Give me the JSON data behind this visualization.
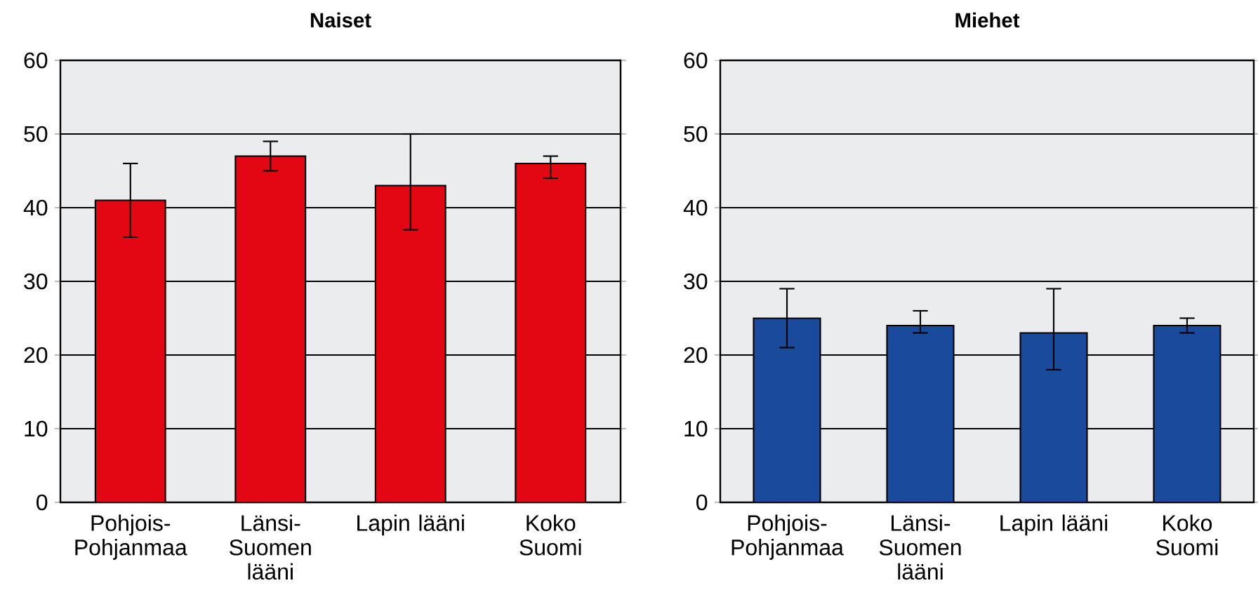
{
  "chart_data": [
    {
      "type": "bar",
      "title": "Naiset",
      "categories": [
        "Pohjois-Pohjanmaa",
        "Länsi-Suomen lääni",
        "Lapin lääni",
        "Koko Suomi"
      ],
      "values": [
        41,
        47,
        43,
        46
      ],
      "color": "#e30613",
      "errors": [
        [
          36,
          46
        ],
        [
          45,
          49
        ],
        [
          37,
          50
        ],
        [
          44,
          47
        ]
      ],
      "ylim": [
        0,
        60
      ],
      "yticks": [
        0,
        10,
        20,
        30,
        40,
        50,
        60
      ],
      "grid": "y"
    },
    {
      "type": "bar",
      "title": "Miehet",
      "categories": [
        "Pohjois-Pohjanmaa",
        "Länsi-Suomen lääni",
        "Lapin lääni",
        "Koko Suomi"
      ],
      "values": [
        25,
        24,
        23,
        24
      ],
      "color": "#1a4a9c",
      "errors": [
        [
          21,
          29
        ],
        [
          23,
          26
        ],
        [
          18,
          29
        ],
        [
          23,
          25
        ]
      ],
      "ylim": [
        0,
        60
      ],
      "yticks": [
        0,
        10,
        20,
        30,
        40,
        50,
        60
      ],
      "grid": "y"
    }
  ]
}
